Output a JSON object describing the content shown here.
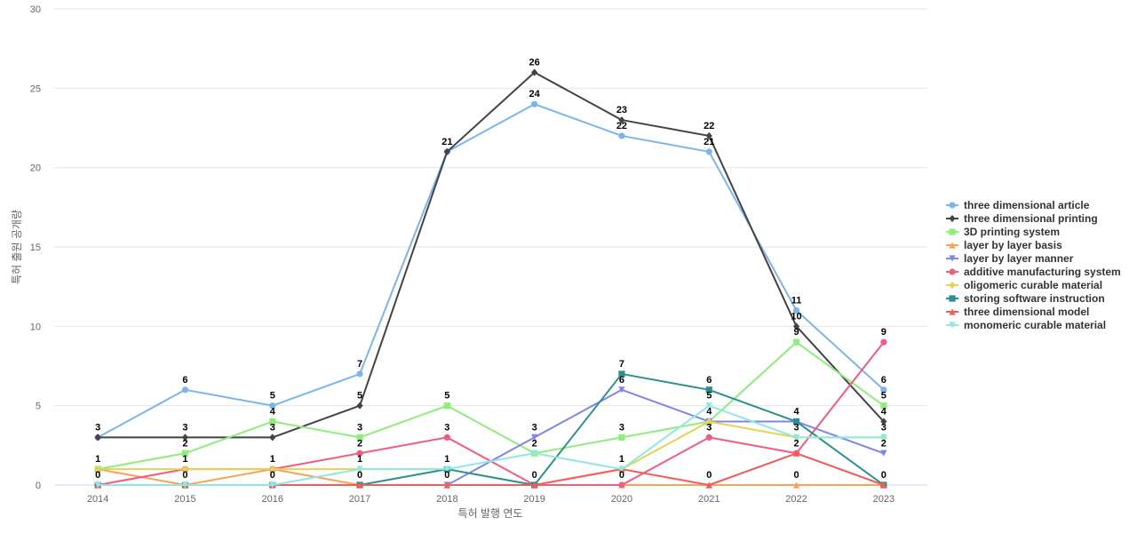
{
  "chart_data": {
    "type": "line",
    "title": "",
    "xlabel": "특허 발행 연도",
    "ylabel": "특허 출원 공개량",
    "ylim": [
      0,
      30
    ],
    "yticks": [
      0,
      5,
      10,
      15,
      20,
      25,
      30
    ],
    "grid": true,
    "legend_position": "right",
    "categories": [
      "2014",
      "2015",
      "2016",
      "2017",
      "2018",
      "2019",
      "2020",
      "2021",
      "2022",
      "2023"
    ],
    "series": [
      {
        "name": "three dimensional article",
        "color": "#7cb5ec",
        "marker": "circle",
        "values": [
          3,
          6,
          5,
          7,
          21,
          24,
          22,
          21,
          11,
          6
        ]
      },
      {
        "name": "three dimensional printing",
        "color": "#434348",
        "marker": "diamond",
        "values": [
          3,
          3,
          3,
          5,
          21,
          26,
          23,
          22,
          10,
          4
        ]
      },
      {
        "name": "3D printing system",
        "color": "#90ed7d",
        "marker": "square",
        "values": [
          1,
          2,
          4,
          3,
          5,
          2,
          3,
          4,
          9,
          5
        ]
      },
      {
        "name": "layer by layer basis",
        "color": "#f7a35c",
        "marker": "triangle",
        "values": [
          1,
          0,
          1,
          0,
          0,
          0,
          0,
          0,
          0,
          0
        ]
      },
      {
        "name": "layer by layer manner",
        "color": "#8085e9",
        "marker": "triangle-down",
        "values": [
          0,
          0,
          0,
          0,
          0,
          3,
          6,
          4,
          4,
          2
        ]
      },
      {
        "name": "additive manufacturing system",
        "color": "#f15c80",
        "marker": "circle",
        "values": [
          0,
          1,
          1,
          2,
          3,
          0,
          0,
          3,
          2,
          9
        ]
      },
      {
        "name": "oligomeric curable material",
        "color": "#e4d354",
        "marker": "diamond",
        "values": [
          1,
          1,
          1,
          1,
          1,
          0,
          1,
          4,
          3,
          3
        ]
      },
      {
        "name": "storing software instruction",
        "color": "#2b908f",
        "marker": "square",
        "values": [
          0,
          0,
          0,
          0,
          1,
          0,
          7,
          6,
          4,
          0
        ]
      },
      {
        "name": "three dimensional model",
        "color": "#f45b5b",
        "marker": "triangle",
        "values": [
          0,
          0,
          0,
          0,
          0,
          0,
          1,
          0,
          2,
          0
        ]
      },
      {
        "name": "monomeric curable material",
        "color": "#91e8e1",
        "marker": "triangle-down",
        "values": [
          0,
          0,
          0,
          1,
          1,
          2,
          1,
          5,
          3,
          3
        ]
      }
    ],
    "data_labels": [
      {
        "category": "2014",
        "text": "3"
      },
      {
        "category": "2014",
        "text": "1"
      },
      {
        "category": "2014",
        "text": "0"
      },
      {
        "category": "2015",
        "text": "6"
      },
      {
        "category": "2015",
        "text": "3"
      },
      {
        "category": "2015",
        "text": "2"
      },
      {
        "category": "2015",
        "text": "1"
      },
      {
        "category": "2015",
        "text": "0"
      },
      {
        "category": "2016",
        "text": "5"
      },
      {
        "category": "2016",
        "text": "4"
      },
      {
        "category": "2016",
        "text": "3"
      },
      {
        "category": "2016",
        "text": "1"
      },
      {
        "category": "2016",
        "text": "0"
      },
      {
        "category": "2017",
        "text": "7"
      },
      {
        "category": "2017",
        "text": "5"
      },
      {
        "category": "2017",
        "text": "3"
      },
      {
        "category": "2017",
        "text": "2"
      },
      {
        "category": "2017",
        "text": "1"
      },
      {
        "category": "2017",
        "text": "0"
      },
      {
        "category": "2018",
        "text": "21"
      },
      {
        "category": "2018",
        "text": "5"
      },
      {
        "category": "2018",
        "text": "3"
      },
      {
        "category": "2018",
        "text": "1"
      },
      {
        "category": "2018",
        "text": "0"
      },
      {
        "category": "2019",
        "text": "26"
      },
      {
        "category": "2019",
        "text": "24"
      },
      {
        "category": "2019",
        "text": "3"
      },
      {
        "category": "2019",
        "text": "2"
      },
      {
        "category": "2019",
        "text": "0"
      },
      {
        "category": "2020",
        "text": "23"
      },
      {
        "category": "2020",
        "text": "22"
      },
      {
        "category": "2020",
        "text": "7"
      },
      {
        "category": "2020",
        "text": "6"
      },
      {
        "category": "2020",
        "text": "3"
      },
      {
        "category": "2020",
        "text": "1"
      },
      {
        "category": "2020",
        "text": "0"
      },
      {
        "category": "2021",
        "text": "22"
      },
      {
        "category": "2021",
        "text": "21"
      },
      {
        "category": "2021",
        "text": "6"
      },
      {
        "category": "2021",
        "text": "5"
      },
      {
        "category": "2021",
        "text": "4"
      },
      {
        "category": "2021",
        "text": "3"
      },
      {
        "category": "2021",
        "text": "0"
      },
      {
        "category": "2022",
        "text": "11"
      },
      {
        "category": "2022",
        "text": "10"
      },
      {
        "category": "2022",
        "text": "9"
      },
      {
        "category": "2022",
        "text": "4"
      },
      {
        "category": "2022",
        "text": "3"
      },
      {
        "category": "2022",
        "text": "2"
      },
      {
        "category": "2022",
        "text": "0"
      },
      {
        "category": "2023",
        "text": "9"
      },
      {
        "category": "2023",
        "text": "6"
      },
      {
        "category": "2023",
        "text": "5"
      },
      {
        "category": "2023",
        "text": "4"
      },
      {
        "category": "2023",
        "text": "3"
      },
      {
        "category": "2023",
        "text": "2"
      },
      {
        "category": "2023",
        "text": "0"
      }
    ]
  }
}
